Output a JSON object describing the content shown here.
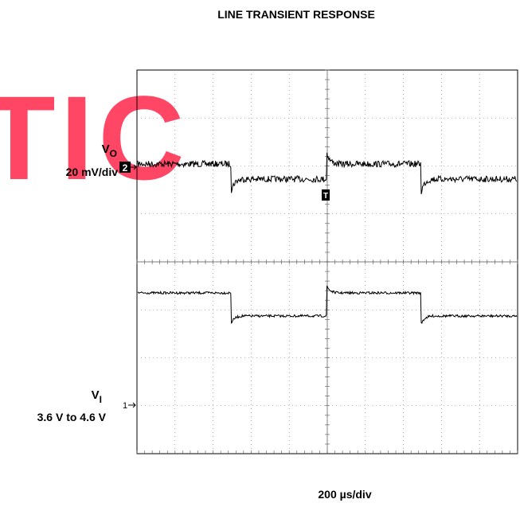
{
  "title": "LINE TRANSIENT RESPONSE",
  "watermark": "TIC",
  "channels": [
    {
      "symbol": "V",
      "subscript": "O",
      "scale": "20 mV/div",
      "marker": "2"
    },
    {
      "symbol": "V",
      "subscript": "I",
      "scale": "3.6 V to 4.6 V",
      "marker": "1"
    }
  ],
  "trigger_marker": "T",
  "time_scale": "200 µs/div"
}
